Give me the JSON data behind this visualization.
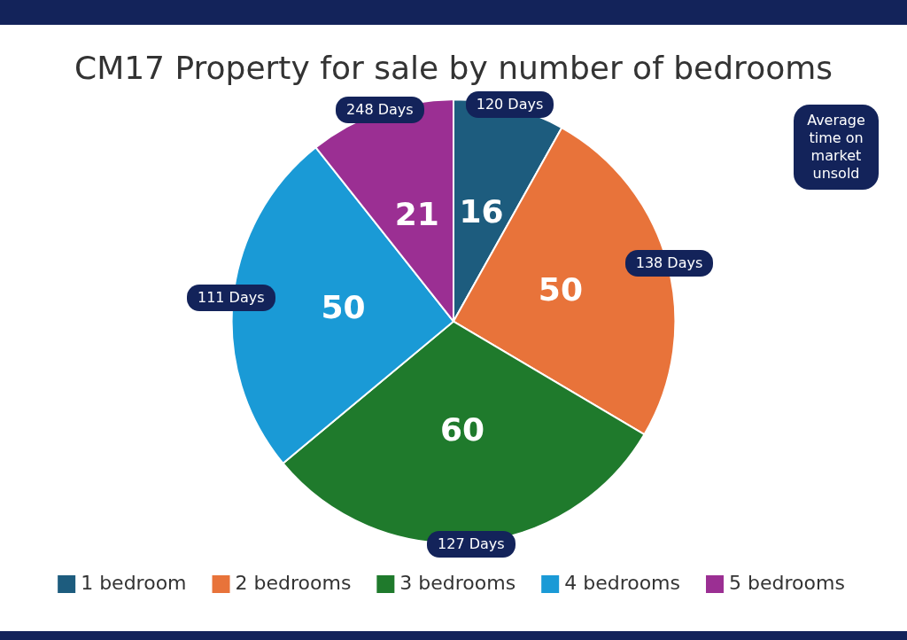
{
  "chart_data": {
    "type": "pie",
    "title": "CM17 Property for sale by number of bedrooms",
    "categories": [
      "1 bedroom",
      "2 bedrooms",
      "3 bedrooms",
      "4 bedrooms",
      "5 bedrooms"
    ],
    "values": [
      16,
      50,
      60,
      50,
      21
    ],
    "colors": [
      "#1d5c7e",
      "#e8733a",
      "#1f7a2c",
      "#1a9ad6",
      "#9b2f93"
    ],
    "data_labels": true,
    "legend": "bottom",
    "annotations": [
      "120 Days",
      "138 Days",
      "127 Days",
      "111 Days",
      "248 Days",
      "Average time on market unsold"
    ]
  }
}
